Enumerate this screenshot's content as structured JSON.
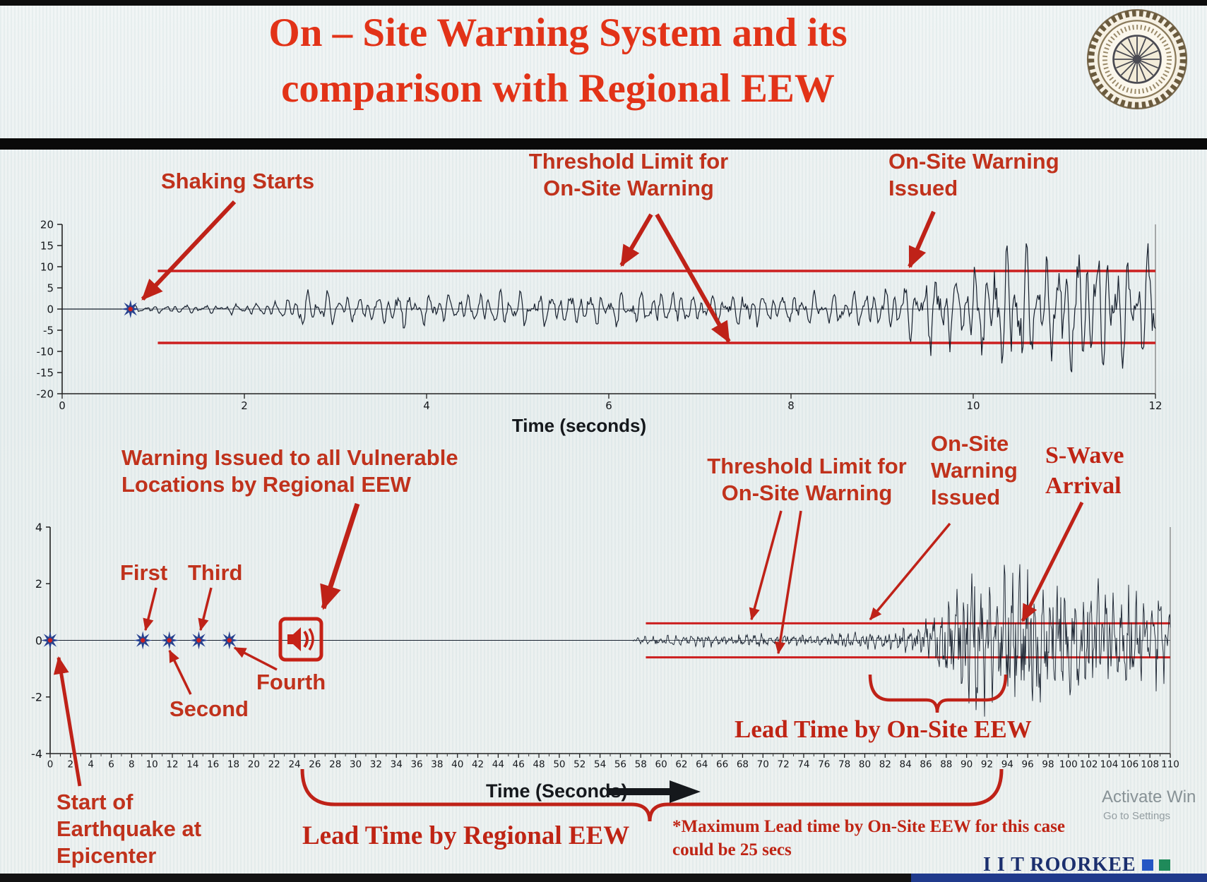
{
  "slide": {
    "title_line1": "On – Site Warning System and its",
    "title_line2": "comparison with Regional EEW"
  },
  "branding": {
    "logo_name": "iit-roorkee-seal",
    "footer_brand": "I I T ROORKEE",
    "watermark_line1": "Activate Win",
    "watermark_line2": "Go to Settings"
  },
  "colors": {
    "title_red": "#e23318",
    "annotation_red": "#c0321c",
    "serif_red": "#bf2414",
    "threshold_red": "#cc1f1f",
    "waveform": "#17202e",
    "marker_blue": "#27418f",
    "brand_navy": "#1b2f6e",
    "brand_square_blue": "#2456c4",
    "brand_square_green": "#1f8a5a"
  },
  "annotations_top": {
    "shaking_starts": "Shaking Starts",
    "threshold_limit": [
      "Threshold Limit for",
      "On-Site Warning"
    ],
    "onsite_issued": [
      "On-Site Warning",
      "Issued"
    ]
  },
  "annotations_bottom": {
    "warning_regional": [
      "Warning Issued to all Vulnerable",
      "Locations by Regional EEW"
    ],
    "first": "First",
    "second": "Second",
    "third": "Third",
    "fourth": "Fourth",
    "threshold_limit": [
      "Threshold Limit for",
      "On-Site Warning"
    ],
    "onsite_issued": [
      "On-Site",
      "Warning",
      "Issued"
    ],
    "s_wave": [
      "S-Wave",
      "Arrival"
    ],
    "lead_onsite": "Lead Time by On-Site EEW",
    "lead_regional": "Lead Time by Regional EEW",
    "max_note": [
      "*Maximum Lead time by On-Site EEW for this case",
      "could be 25 secs"
    ],
    "start_epicenter": [
      "Start of",
      "Earthquake at",
      "Epicenter"
    ]
  },
  "chart_data": [
    {
      "type": "line",
      "name": "on-site-record",
      "title": "",
      "xlabel": "Time (seconds)",
      "ylabel": "",
      "xlim": [
        0,
        12
      ],
      "ylim": [
        -20,
        20
      ],
      "xticks": [
        0,
        2,
        4,
        6,
        8,
        10,
        12
      ],
      "yticks": [
        20,
        15,
        10,
        5,
        0,
        -5,
        -10,
        -15,
        -20
      ],
      "grid": false,
      "signal_onset_s": 0.75,
      "onsite_warning_issued_s": 9.3,
      "threshold": {
        "upper": 9,
        "lower": -8,
        "span_s": [
          1.05,
          12
        ]
      },
      "event_markers_s": [
        0.75
      ],
      "amplitude_envelope": [
        [
          0,
          0
        ],
        [
          0.72,
          0
        ],
        [
          0.8,
          0.8
        ],
        [
          1.1,
          1.0
        ],
        [
          1.5,
          0.9
        ],
        [
          1.9,
          1.2
        ],
        [
          2.2,
          1.4
        ],
        [
          2.45,
          2.4
        ],
        [
          2.6,
          4.8
        ],
        [
          2.85,
          4.0
        ],
        [
          3.1,
          3.0
        ],
        [
          3.5,
          3.6
        ],
        [
          3.9,
          4.4
        ],
        [
          4.3,
          3.2
        ],
        [
          4.7,
          3.8
        ],
        [
          5.1,
          4.3
        ],
        [
          5.5,
          3.5
        ],
        [
          5.9,
          4.1
        ],
        [
          6.3,
          3.6
        ],
        [
          6.7,
          4.4
        ],
        [
          7.1,
          3.3
        ],
        [
          7.5,
          4.2
        ],
        [
          7.9,
          3.4
        ],
        [
          8.3,
          3.9
        ],
        [
          8.7,
          4.3
        ],
        [
          9.0,
          4.8
        ],
        [
          9.3,
          6.5
        ],
        [
          9.6,
          9.5
        ],
        [
          9.9,
          8.5
        ],
        [
          10.2,
          13.0
        ],
        [
          10.5,
          16.5
        ],
        [
          10.8,
          11.0
        ],
        [
          11.1,
          15.5
        ],
        [
          11.4,
          16.5
        ],
        [
          11.7,
          12.5
        ],
        [
          12.0,
          15.0
        ]
      ]
    },
    {
      "type": "line",
      "name": "regional-vs-onsite-record",
      "title": "",
      "xlabel": "Time (Seconds)",
      "ylabel": "",
      "xlim": [
        0,
        110
      ],
      "ylim": [
        -4,
        4
      ],
      "xticks": [
        0,
        2,
        4,
        6,
        8,
        10,
        12,
        14,
        16,
        18,
        20,
        22,
        24,
        26,
        28,
        30,
        32,
        34,
        36,
        38,
        40,
        42,
        44,
        46,
        48,
        50,
        52,
        54,
        56,
        58,
        60,
        62,
        64,
        66,
        68,
        70,
        72,
        74,
        76,
        78,
        80,
        82,
        84,
        86,
        88,
        90,
        92,
        94,
        96,
        98,
        100,
        102,
        104,
        106,
        108,
        110
      ],
      "yticks": [
        4,
        2,
        0,
        -2,
        -4
      ],
      "grid": false,
      "threshold": {
        "upper": 0.6,
        "lower": -0.6,
        "span_s": [
          58.5,
          110
        ]
      },
      "p_wave_detections_s": {
        "start": 0,
        "first": 9.1,
        "second": 11.7,
        "third": 14.6,
        "fourth": 17.6
      },
      "regional_warning_issued_s": 24.5,
      "onsite_warning_issued_s": 80,
      "s_wave_arrival_s": 93,
      "lead_time_onsite_span_s": [
        80,
        93.5
      ],
      "lead_time_regional_span_s": [
        24.5,
        92
      ],
      "amplitude_envelope": [
        [
          0,
          0
        ],
        [
          57.2,
          0
        ],
        [
          57.6,
          0.14
        ],
        [
          59,
          0.18
        ],
        [
          61,
          0.22
        ],
        [
          63,
          0.19
        ],
        [
          65,
          0.24
        ],
        [
          67,
          0.2
        ],
        [
          69,
          0.26
        ],
        [
          71,
          0.21
        ],
        [
          73,
          0.24
        ],
        [
          75,
          0.2
        ],
        [
          77,
          0.27
        ],
        [
          79,
          0.3
        ],
        [
          81,
          0.34
        ],
        [
          83,
          0.4
        ],
        [
          85,
          0.55
        ],
        [
          86.5,
          0.8
        ],
        [
          88,
          1.4
        ],
        [
          89.5,
          2.4
        ],
        [
          91,
          2.9
        ],
        [
          92.5,
          2.3
        ],
        [
          94,
          2.7
        ],
        [
          95.5,
          2.4
        ],
        [
          97,
          2.6
        ],
        [
          98.5,
          2.1
        ],
        [
          100,
          2.4
        ],
        [
          101.5,
          1.9
        ],
        [
          103,
          2.2
        ],
        [
          104.5,
          1.8
        ],
        [
          106,
          2.0
        ],
        [
          107.5,
          1.6
        ],
        [
          109,
          1.8
        ],
        [
          110,
          1.6
        ]
      ]
    }
  ]
}
